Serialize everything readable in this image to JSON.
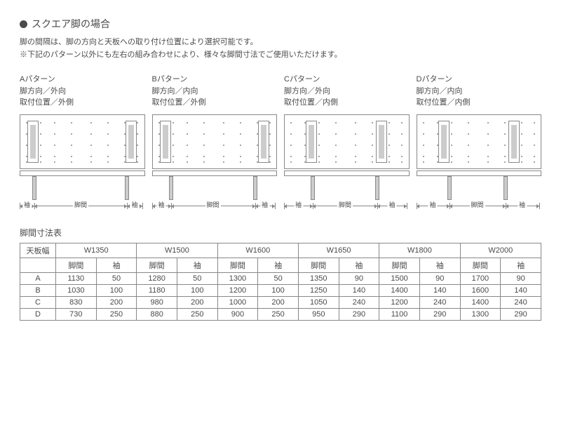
{
  "title": "スクエア脚の場合",
  "subtitle1": "脚の間隔は、脚の方向と天板への取り付け位置により選択可能です。",
  "subtitle2": "※下記のパターン以外にも左右の組み合わせにより、様々な脚間寸法でご使用いただけます。",
  "patterns": [
    {
      "name": "Aパターン",
      "dir": "脚方向／外向",
      "pos": "取付位置／外側",
      "legL": 10,
      "legR": 150,
      "sideL": 18,
      "sideR": 150
    },
    {
      "name": "Bパターン",
      "dir": "脚方向／内向",
      "pos": "取付位置／外側",
      "legL": 10,
      "legR": 150,
      "sideL": 24,
      "sideR": 144
    },
    {
      "name": "Cパターン",
      "dir": "脚方向／外向",
      "pos": "取付位置／内側",
      "legL": 30,
      "legR": 130,
      "sideL": 38,
      "sideR": 130
    },
    {
      "name": "Dパターン",
      "dir": "脚方向／内向",
      "pos": "取付位置／内側",
      "legL": 30,
      "legR": 130,
      "sideL": 44,
      "sideR": 124
    }
  ],
  "labels": {
    "sode": "袖",
    "kyakukan": "脚間"
  },
  "tableTitle": "脚間寸法表",
  "table": {
    "cornerLabel": "天板幅",
    "widths": [
      "W1350",
      "W1500",
      "W1600",
      "W1650",
      "W1800",
      "W2000"
    ],
    "subcols": [
      "脚間",
      "袖"
    ],
    "rows": [
      {
        "label": "A",
        "cells": [
          1130,
          50,
          1280,
          50,
          1300,
          50,
          1350,
          90,
          1500,
          90,
          1700,
          90
        ]
      },
      {
        "label": "B",
        "cells": [
          1030,
          100,
          1180,
          100,
          1200,
          100,
          1250,
          140,
          1400,
          140,
          1600,
          140
        ]
      },
      {
        "label": "C",
        "cells": [
          830,
          200,
          980,
          200,
          1000,
          200,
          1050,
          240,
          1200,
          240,
          1400,
          240
        ]
      },
      {
        "label": "D",
        "cells": [
          730,
          250,
          880,
          250,
          900,
          250,
          950,
          290,
          1100,
          290,
          1300,
          290
        ]
      }
    ]
  },
  "style": {
    "textColor": "#4a4a4a",
    "borderColor": "#888888",
    "legFill": "#cccccc",
    "background": "#ffffff"
  }
}
